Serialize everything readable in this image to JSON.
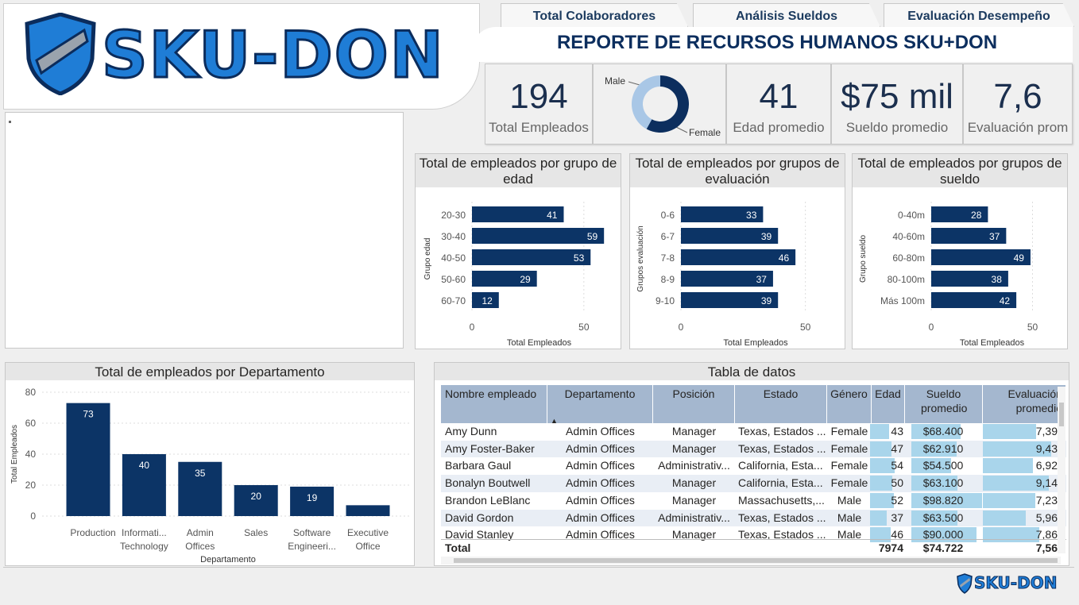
{
  "logo": {
    "text": "SKU-DON"
  },
  "tabs": [
    "Total Colaboradores",
    "Análisis Sueldos",
    "Evaluación Desempeño"
  ],
  "title": "REPORTE DE RECURSOS HUMANOS SKU+DON",
  "kpis": [
    {
      "value": "194",
      "label": "Total Empleados"
    },
    {
      "value": "41",
      "label": "Edad promedio"
    },
    {
      "value": "$75 mil",
      "label": "Sueldo promedio"
    },
    {
      "value": "7,6",
      "label": "Evaluación prom"
    }
  ],
  "gender_donut": {
    "male_label": "Male",
    "female_label": "Female",
    "male_fraction": 0.42,
    "female_fraction": 0.58,
    "colors": {
      "male": "#a9c7e6",
      "female": "#0c2e5e"
    }
  },
  "colors": {
    "bar": "#0c3466",
    "header": "#a4b7cf",
    "accent_bar": "#a9d5eb"
  },
  "chart_data": [
    {
      "type": "bar",
      "orientation": "horizontal",
      "title": "Total de empleados por grupo de edad",
      "xlabel": "Total Empleados",
      "ylabel": "Grupo edad",
      "categories": [
        "20-30",
        "30-40",
        "40-50",
        "50-60",
        "60-70"
      ],
      "values": [
        41,
        59,
        53,
        29,
        12
      ],
      "xticks": [
        "0",
        "50"
      ],
      "xlim": [
        0,
        60
      ]
    },
    {
      "type": "bar",
      "orientation": "horizontal",
      "title": "Total de empleados por grupos de evaluación",
      "xlabel": "Total Empleados",
      "ylabel": "Grupos evaluación",
      "categories": [
        "0-6",
        "6-7",
        "7-8",
        "8-9",
        "9-10"
      ],
      "values": [
        33,
        39,
        46,
        37,
        39
      ],
      "xticks": [
        "0",
        "50"
      ],
      "xlim": [
        0,
        60
      ]
    },
    {
      "type": "bar",
      "orientation": "horizontal",
      "title": "Total de empleados por grupos de sueldo",
      "xlabel": "Total Empleados",
      "ylabel": "Grupo sueldo",
      "categories": [
        "0-40m",
        "40-60m",
        "60-80m",
        "80-100m",
        "Más 100m"
      ],
      "values": [
        28,
        37,
        49,
        38,
        42
      ],
      "xticks": [
        "0",
        "50"
      ],
      "xlim": [
        0,
        60
      ]
    },
    {
      "type": "bar",
      "orientation": "vertical",
      "title": "Total de empleados por Departamento",
      "xlabel": "Departamento",
      "ylabel": "Total Empleados",
      "categories": [
        [
          "Production"
        ],
        [
          "Informati...",
          "Technology"
        ],
        [
          "Admin",
          "Offices"
        ],
        [
          "Sales"
        ],
        [
          "Software",
          "Engineeri..."
        ],
        [
          "Executive",
          "Office"
        ]
      ],
      "values": [
        73,
        40,
        35,
        20,
        19,
        7
      ],
      "yticks": [
        "0",
        "20",
        "40",
        "60",
        "80"
      ],
      "ylim": [
        0,
        80
      ],
      "data_labels": [
        "73",
        "40",
        "35",
        "20",
        "19",
        ""
      ]
    }
  ],
  "table": {
    "title": "Tabla de datos",
    "columns": [
      "Nombre empleado",
      "Departamento",
      "Posición",
      "Estado",
      "Género",
      "Edad",
      "Sueldo promedio",
      "Evaluación promedio"
    ],
    "rows": [
      [
        "Amy Dunn",
        "Admin Offices",
        "Manager",
        "Texas, Estados ...",
        "Female",
        "43",
        "$68.400",
        "7,39"
      ],
      [
        "Amy Foster-Baker",
        "Admin Offices",
        "Manager",
        "Texas, Estados ...",
        "Female",
        "47",
        "$62.910",
        "9,43"
      ],
      [
        "Barbara Gaul",
        "Admin Offices",
        "Administrativ...",
        "California, Esta...",
        "Female",
        "54",
        "$54.500",
        "6,92"
      ],
      [
        "Bonalyn Boutwell",
        "Admin Offices",
        "Manager",
        "California, Esta...",
        "Female",
        "50",
        "$63.100",
        "9,14"
      ],
      [
        "Brandon LeBlanc",
        "Admin Offices",
        "Manager",
        "Massachusetts,...",
        "Male",
        "52",
        "$98.820",
        "7,23"
      ],
      [
        "David Gordon",
        "Admin Offices",
        "Administrativ...",
        "Texas, Estados ...",
        "Male",
        "37",
        "$63.500",
        "5,96"
      ],
      [
        "David Stanley",
        "Admin Offices",
        "Manager",
        "Texas, Estados ...",
        "Male",
        "46",
        "$90.000",
        "7,86"
      ]
    ],
    "bar_fractions": {
      "edad": [
        0.72,
        0.78,
        0.9,
        0.83,
        0.87,
        0.62,
        0.77
      ],
      "sueldo": [
        0.7,
        0.64,
        0.56,
        0.65,
        1.0,
        0.65,
        0.92
      ],
      "eval": [
        0.78,
        1.0,
        0.73,
        0.97,
        0.77,
        0.63,
        0.83
      ]
    },
    "total": {
      "label": "Total",
      "edad": "7974",
      "sueldo": "$74.722",
      "eval": "7,56"
    }
  }
}
